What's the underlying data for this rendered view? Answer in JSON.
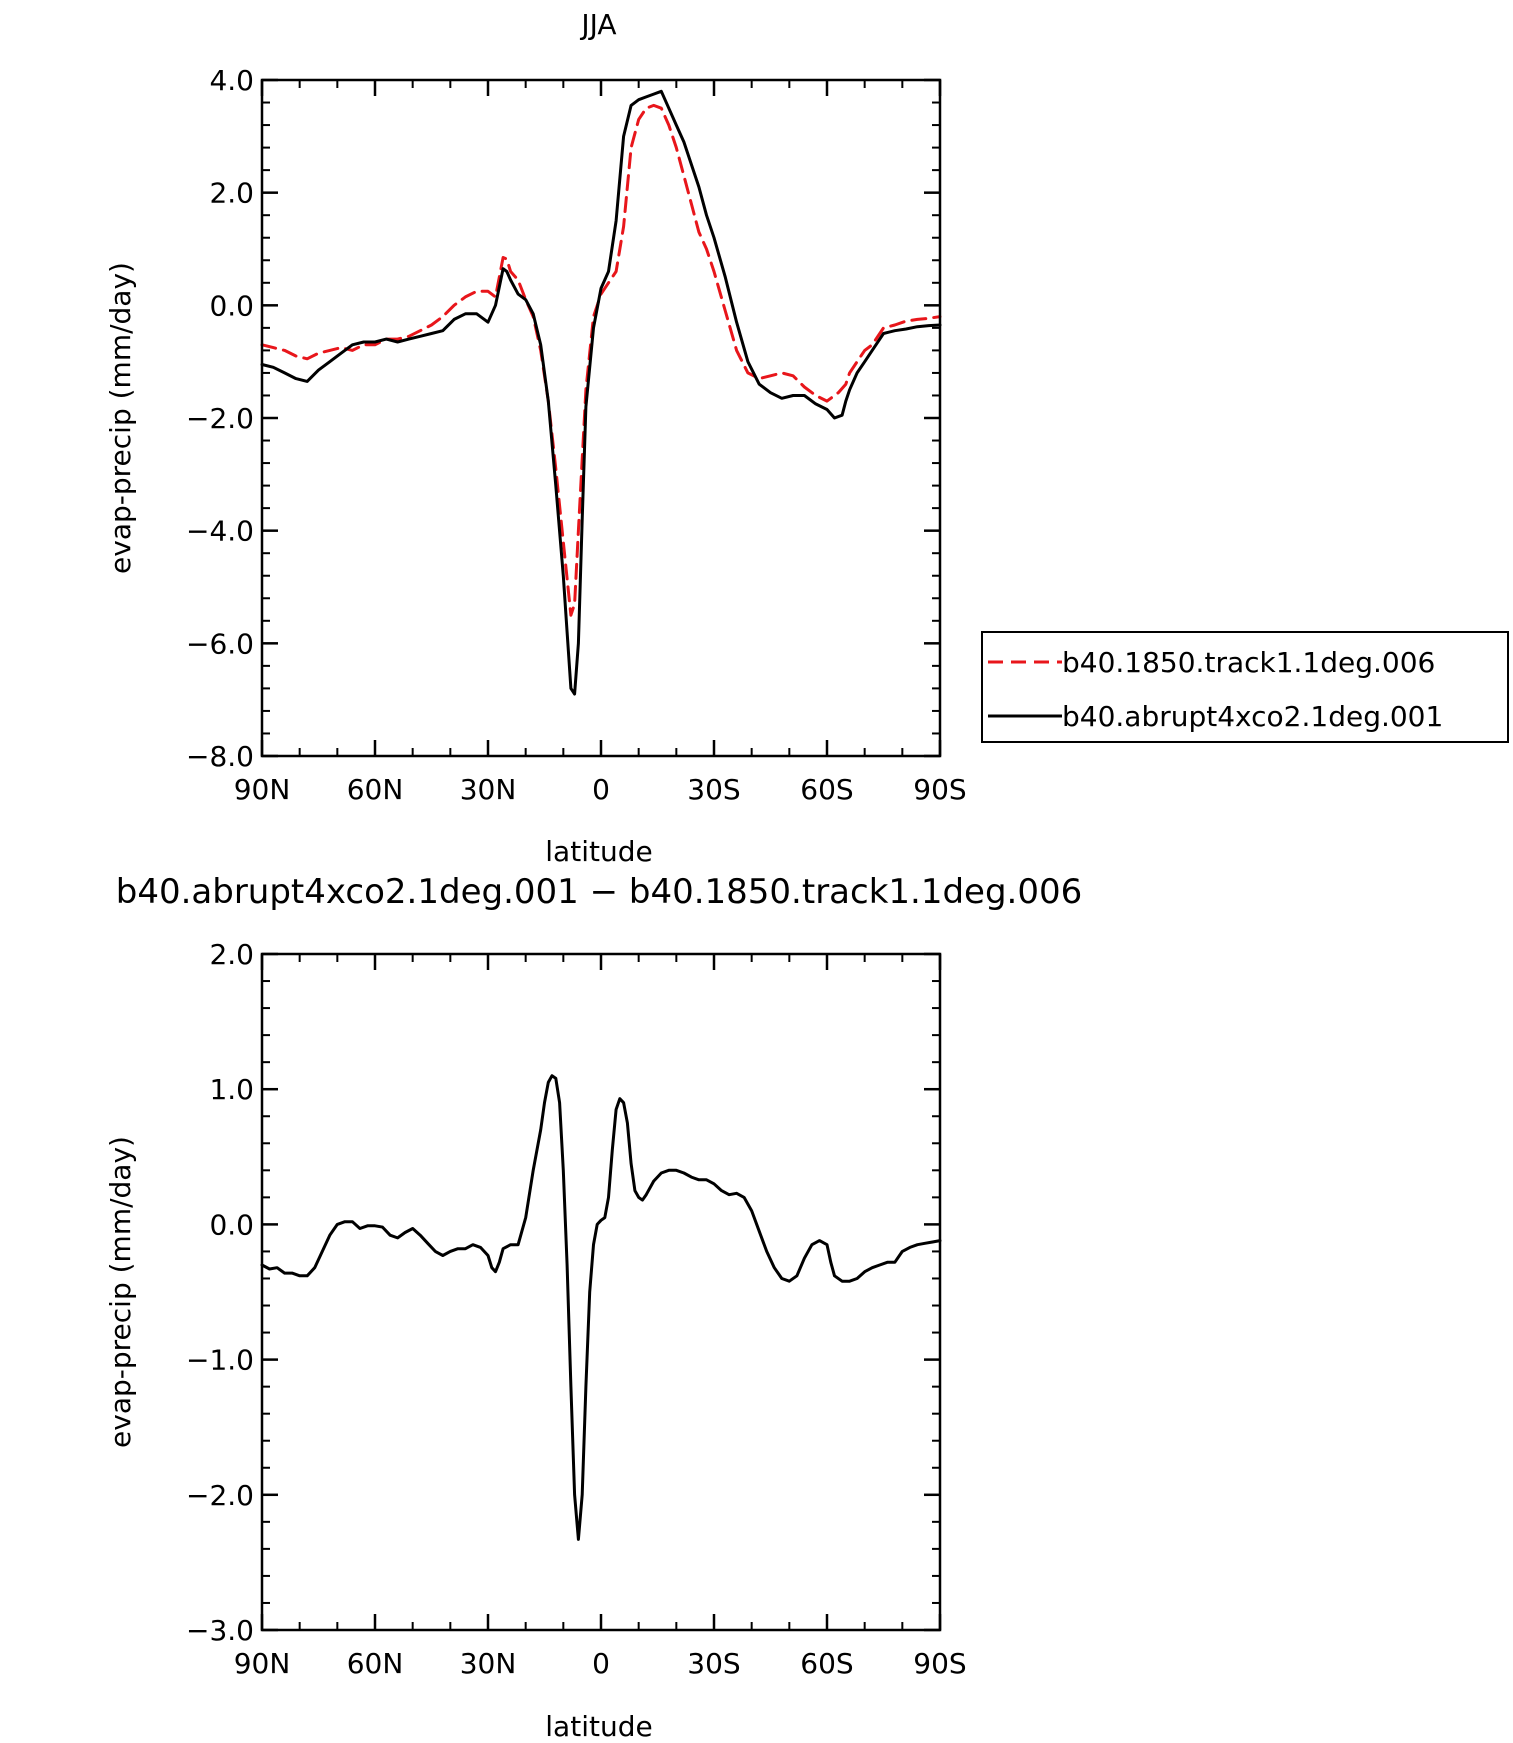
{
  "chart_data": [
    {
      "type": "line",
      "title": "JJA",
      "xlabel": "latitude",
      "ylabel": "evap-precip (mm/day)",
      "xlim": [
        90,
        -90
      ],
      "ylim": [
        -8,
        4
      ],
      "xticks": [
        90,
        60,
        30,
        0,
        -30,
        -60,
        -90
      ],
      "xtick_labels": [
        "90N",
        "60N",
        "30N",
        "0",
        "30S",
        "60S",
        "90S"
      ],
      "yticks": [
        4,
        2,
        0,
        -2,
        -4,
        -6,
        -8
      ],
      "ytick_labels": [
        "4.0",
        "2.0",
        "0.0",
        "−2.0",
        "−4.0",
        "−6.0",
        "−8.0"
      ],
      "grid": false,
      "legend": "outside-right",
      "series": [
        {
          "name": "b40.1850.track1.1deg.006",
          "color": "#e8161b",
          "dash": "dashed",
          "x": [
            90,
            87,
            84,
            81,
            78,
            75,
            72,
            69,
            66,
            63,
            60,
            57,
            54,
            51,
            48,
            45,
            42,
            39,
            36,
            33,
            30,
            28,
            26,
            25,
            24,
            22,
            20,
            18,
            16,
            14,
            12,
            10,
            8,
            7,
            6,
            4,
            2,
            0,
            -2,
            -4,
            -6,
            -8,
            -10,
            -12,
            -14,
            -16,
            -18,
            -20,
            -22,
            -24,
            -26,
            -28,
            -30,
            -33,
            -36,
            -39,
            -42,
            -45,
            -48,
            -51,
            -54,
            -57,
            -60,
            -63,
            -65,
            -66,
            -68,
            -70,
            -72,
            -75,
            -78,
            -81,
            -84,
            -87,
            -90
          ],
          "y": [
            -0.7,
            -0.75,
            -0.8,
            -0.9,
            -0.95,
            -0.85,
            -0.8,
            -0.75,
            -0.8,
            -0.7,
            -0.7,
            -0.6,
            -0.6,
            -0.55,
            -0.45,
            -0.35,
            -0.2,
            0.0,
            0.15,
            0.25,
            0.25,
            0.15,
            0.85,
            0.82,
            0.6,
            0.45,
            0.1,
            -0.2,
            -0.8,
            -1.7,
            -2.9,
            -4.2,
            -5.5,
            -5.3,
            -4.0,
            -1.5,
            -0.2,
            0.2,
            0.4,
            0.6,
            1.4,
            2.8,
            3.3,
            3.5,
            3.55,
            3.5,
            3.2,
            2.8,
            2.3,
            1.8,
            1.3,
            1.0,
            0.6,
            -0.1,
            -0.8,
            -1.2,
            -1.3,
            -1.25,
            -1.2,
            -1.25,
            -1.45,
            -1.6,
            -1.7,
            -1.55,
            -1.4,
            -1.2,
            -1.0,
            -0.8,
            -0.7,
            -0.4,
            -0.35,
            -0.28,
            -0.25,
            -0.23,
            -0.2
          ]
        },
        {
          "name": "b40.abrupt4xco2.1deg.001",
          "color": "#000000",
          "dash": "solid",
          "x": [
            90,
            87,
            84,
            81,
            78,
            75,
            72,
            69,
            66,
            63,
            60,
            57,
            54,
            51,
            48,
            45,
            42,
            39,
            36,
            33,
            30,
            28,
            26,
            25,
            24,
            22,
            20,
            18,
            16,
            14,
            12,
            10,
            9,
            8,
            7,
            6,
            5,
            4,
            2,
            0,
            -2,
            -4,
            -6,
            -8,
            -10,
            -12,
            -14,
            -16,
            -18,
            -20,
            -22,
            -24,
            -26,
            -28,
            -30,
            -33,
            -36,
            -39,
            -42,
            -45,
            -48,
            -51,
            -54,
            -57,
            -60,
            -62,
            -64,
            -65,
            -66,
            -68,
            -70,
            -72,
            -75,
            -78,
            -81,
            -84,
            -87,
            -90
          ],
          "y": [
            -1.05,
            -1.1,
            -1.2,
            -1.3,
            -1.35,
            -1.15,
            -1.0,
            -0.85,
            -0.7,
            -0.65,
            -0.65,
            -0.6,
            -0.65,
            -0.6,
            -0.55,
            -0.5,
            -0.45,
            -0.25,
            -0.15,
            -0.15,
            -0.3,
            0.0,
            0.65,
            0.6,
            0.45,
            0.2,
            0.1,
            -0.15,
            -0.7,
            -1.7,
            -3.2,
            -4.8,
            -5.8,
            -6.8,
            -6.9,
            -6.0,
            -3.8,
            -1.8,
            -0.4,
            0.3,
            0.6,
            1.5,
            3.0,
            3.55,
            3.65,
            3.7,
            3.75,
            3.8,
            3.5,
            3.2,
            2.9,
            2.5,
            2.1,
            1.6,
            1.2,
            0.5,
            -0.3,
            -1.0,
            -1.4,
            -1.55,
            -1.65,
            -1.6,
            -1.6,
            -1.75,
            -1.85,
            -2.0,
            -1.95,
            -1.7,
            -1.5,
            -1.2,
            -1.0,
            -0.8,
            -0.5,
            -0.45,
            -0.42,
            -0.38,
            -0.36,
            -0.35
          ]
        }
      ]
    },
    {
      "type": "line",
      "title": "b40.abrupt4xco2.1deg.001 − b40.1850.track1.1deg.006",
      "xlabel": "latitude",
      "ylabel": "evap-precip (mm/day)",
      "xlim": [
        90,
        -90
      ],
      "ylim": [
        -3,
        2
      ],
      "xticks": [
        90,
        60,
        30,
        0,
        -30,
        -60,
        -90
      ],
      "xtick_labels": [
        "90N",
        "60N",
        "30N",
        "0",
        "30S",
        "60S",
        "90S"
      ],
      "yticks": [
        2,
        1,
        0,
        -1,
        -2,
        -3
      ],
      "ytick_labels": [
        "2.0",
        "1.0",
        "0.0",
        "−1.0",
        "−2.0",
        "−3.0"
      ],
      "grid": false,
      "legend": "none",
      "series": [
        {
          "color": "#000000",
          "dash": "solid",
          "x": [
            90,
            88,
            86,
            84,
            82,
            80,
            78,
            76,
            74,
            72,
            70,
            68,
            66,
            64,
            62,
            60,
            58,
            56,
            54,
            52,
            50,
            48,
            46,
            44,
            42,
            40,
            38,
            36,
            34,
            32,
            30,
            29,
            28,
            27,
            26,
            24,
            22,
            20,
            18,
            16,
            15,
            14,
            13,
            12,
            11,
            10,
            9,
            8,
            7,
            6,
            5,
            4,
            3,
            2,
            1,
            0,
            -1,
            -2,
            -3,
            -4,
            -5,
            -6,
            -7,
            -8,
            -9,
            -10,
            -11,
            -12,
            -14,
            -16,
            -18,
            -20,
            -22,
            -24,
            -26,
            -28,
            -30,
            -32,
            -34,
            -36,
            -38,
            -40,
            -42,
            -44,
            -46,
            -48,
            -50,
            -52,
            -54,
            -56,
            -58,
            -60,
            -61,
            -62,
            -64,
            -66,
            -68,
            -70,
            -72,
            -74,
            -76,
            -78,
            -80,
            -82,
            -84,
            -86,
            -88,
            -90
          ],
          "y": [
            -0.3,
            -0.33,
            -0.32,
            -0.36,
            -0.36,
            -0.38,
            -0.38,
            -0.32,
            -0.2,
            -0.08,
            0.0,
            0.02,
            0.02,
            -0.03,
            -0.01,
            -0.01,
            -0.02,
            -0.08,
            -0.1,
            -0.06,
            -0.03,
            -0.08,
            -0.14,
            -0.2,
            -0.23,
            -0.2,
            -0.18,
            -0.18,
            -0.15,
            -0.17,
            -0.23,
            -0.32,
            -0.35,
            -0.28,
            -0.18,
            -0.15,
            -0.15,
            0.05,
            0.4,
            0.7,
            0.9,
            1.05,
            1.1,
            1.08,
            0.9,
            0.4,
            -0.3,
            -1.2,
            -2.0,
            -2.33,
            -2.0,
            -1.2,
            -0.5,
            -0.15,
            0.0,
            0.03,
            0.05,
            0.2,
            0.55,
            0.85,
            0.93,
            0.9,
            0.75,
            0.45,
            0.25,
            0.2,
            0.18,
            0.22,
            0.32,
            0.38,
            0.4,
            0.4,
            0.38,
            0.35,
            0.33,
            0.33,
            0.3,
            0.25,
            0.22,
            0.23,
            0.2,
            0.1,
            -0.05,
            -0.2,
            -0.32,
            -0.4,
            -0.42,
            -0.38,
            -0.25,
            -0.15,
            -0.12,
            -0.15,
            -0.28,
            -0.38,
            -0.42,
            -0.42,
            -0.4,
            -0.35,
            -0.32,
            -0.3,
            -0.28,
            -0.28,
            -0.2,
            -0.17,
            -0.15,
            -0.14,
            -0.13,
            -0.12
          ]
        }
      ]
    }
  ]
}
